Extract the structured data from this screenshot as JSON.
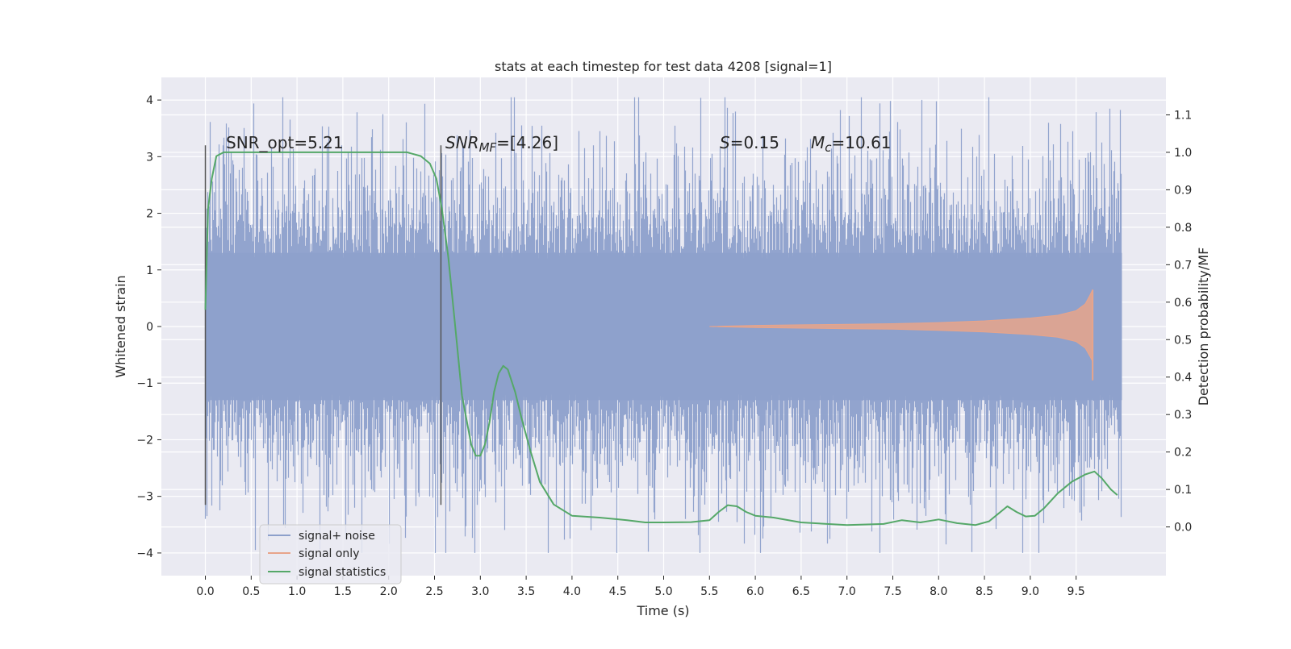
{
  "chart_data": {
    "type": "line",
    "title": "stats at each timestep for test data 4208 [signal=1]",
    "xlabel": "Time (s)",
    "ylabel_left": "Whitened strain",
    "ylabel_right": "Detection probability/MF",
    "xlim": [
      -0.48,
      10.48
    ],
    "ylim_left": [
      -4.4,
      4.4
    ],
    "ylim_right": [
      -0.13,
      1.2
    ],
    "x_ticks": [
      0.0,
      0.5,
      1.0,
      1.5,
      2.0,
      2.5,
      3.0,
      3.5,
      4.0,
      4.5,
      5.0,
      5.5,
      6.0,
      6.5,
      7.0,
      7.5,
      8.0,
      8.5,
      9.0,
      9.5
    ],
    "x_tick_labels": [
      "0.0",
      "0.5",
      "1.0",
      "1.5",
      "2.0",
      "2.5",
      "3.0",
      "3.5",
      "4.0",
      "4.5",
      "5.0",
      "5.5",
      "6.0",
      "6.5",
      "7.0",
      "7.5",
      "8.0",
      "8.5",
      "9.0",
      "9.5"
    ],
    "y_left_ticks": [
      -4,
      -3,
      -2,
      -1,
      0,
      1,
      2,
      3,
      4
    ],
    "y_left_tick_labels": [
      "−4",
      "−3",
      "−2",
      "−1",
      "0",
      "1",
      "2",
      "3",
      "4"
    ],
    "y_right_ticks": [
      0.0,
      0.1,
      0.2,
      0.3,
      0.4,
      0.5,
      0.6,
      0.7,
      0.8,
      0.9,
      1.0,
      1.1
    ],
    "y_right_tick_labels": [
      "0.0",
      "0.1",
      "0.2",
      "0.3",
      "0.4",
      "0.5",
      "0.6",
      "0.7",
      "0.8",
      "0.9",
      "1.0",
      "1.1"
    ],
    "grid": true,
    "legend": {
      "placement": "lower-left"
    },
    "annotations": {
      "snr_opt": "SNR_opt=5.21",
      "snr_mf_base": "SNR",
      "snr_mf_sub": "MF",
      "snr_mf_value": "=[4.26]",
      "s_label": "S",
      "s_value": "=0.15",
      "mc_base": "M",
      "mc_sub": "c",
      "mc_value": "=10.61"
    },
    "vertical_markers": [
      {
        "x": 0.0,
        "y_range": [
          -3.15,
          3.2
        ]
      },
      {
        "x": 2.57,
        "y_range": [
          -3.15,
          3.2
        ]
      }
    ],
    "series": [
      {
        "name": "signal+ noise",
        "axis": "left",
        "color": "#8da0cb",
        "kind": "noise",
        "x_range": [
          0.0,
          10.0
        ],
        "core_band": [
          -1.3,
          1.3
        ],
        "spike_range": [
          -4.0,
          4.05
        ]
      },
      {
        "name": "signal only",
        "axis": "left",
        "color": "#e8a48a",
        "kind": "chirp",
        "envelope_x": [
          5.5,
          6.0,
          6.5,
          7.0,
          7.5,
          8.0,
          8.5,
          9.0,
          9.3,
          9.5,
          9.6,
          9.65,
          9.68
        ],
        "envelope_y": [
          0.0,
          0.02,
          0.03,
          0.04,
          0.05,
          0.07,
          0.1,
          0.15,
          0.2,
          0.28,
          0.4,
          0.55,
          0.65
        ]
      },
      {
        "name": "signal statistics",
        "axis": "right",
        "color": "#55a868",
        "kind": "line",
        "x": [
          0.0,
          0.03,
          0.07,
          0.12,
          0.2,
          0.4,
          0.8,
          1.2,
          1.6,
          2.0,
          2.2,
          2.35,
          2.45,
          2.52,
          2.58,
          2.65,
          2.72,
          2.8,
          2.9,
          2.95,
          3.0,
          3.05,
          3.1,
          3.15,
          3.2,
          3.25,
          3.3,
          3.38,
          3.45,
          3.55,
          3.65,
          3.8,
          4.0,
          4.3,
          4.6,
          4.8,
          5.0,
          5.3,
          5.5,
          5.6,
          5.7,
          5.8,
          5.9,
          6.0,
          6.2,
          6.5,
          7.0,
          7.4,
          7.6,
          7.8,
          8.0,
          8.2,
          8.4,
          8.55,
          8.65,
          8.75,
          8.85,
          8.95,
          9.05,
          9.15,
          9.3,
          9.45,
          9.6,
          9.7,
          9.78,
          9.88,
          9.95
        ],
        "y": [
          0.58,
          0.85,
          0.93,
          0.99,
          1.0,
          1.0,
          1.0,
          1.0,
          1.0,
          1.0,
          1.0,
          0.99,
          0.97,
          0.93,
          0.85,
          0.72,
          0.55,
          0.35,
          0.22,
          0.19,
          0.19,
          0.22,
          0.28,
          0.36,
          0.41,
          0.43,
          0.42,
          0.36,
          0.29,
          0.2,
          0.12,
          0.06,
          0.03,
          0.025,
          0.018,
          0.012,
          0.012,
          0.013,
          0.018,
          0.04,
          0.058,
          0.055,
          0.04,
          0.03,
          0.025,
          0.012,
          0.005,
          0.008,
          0.018,
          0.012,
          0.02,
          0.01,
          0.005,
          0.015,
          0.035,
          0.055,
          0.04,
          0.028,
          0.03,
          0.05,
          0.09,
          0.12,
          0.14,
          0.148,
          0.13,
          0.1,
          0.085
        ]
      }
    ]
  }
}
